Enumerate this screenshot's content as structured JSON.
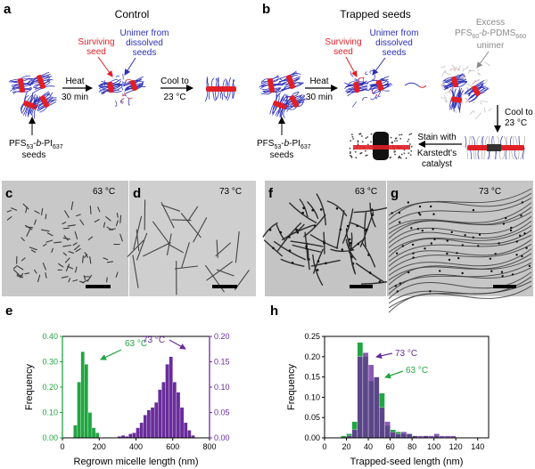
{
  "panels": {
    "a": {
      "letter": "a",
      "title": "Control",
      "surviving_seed": [
        "Surviving",
        "seed"
      ],
      "unimer": [
        "Unimer from",
        "dissolved",
        "seeds"
      ],
      "heat": "Heat",
      "heat_time": "30 min",
      "cool": "Cool to",
      "cool_temp": "23 °C",
      "seed_label": {
        "pre": "PFS",
        "sub1": "53",
        "mid": "-",
        "b": "b",
        "mid2": "-PI",
        "sub2": "637"
      },
      "seeds": "seeds"
    },
    "b": {
      "letter": "b",
      "title": "Trapped seeds",
      "surviving_seed": [
        "Surviving",
        "seed"
      ],
      "unimer": [
        "Unimer from",
        "dissolved",
        "seeds"
      ],
      "excess": {
        "line1": "Excess",
        "pre": "PFS",
        "sub1": "60",
        "mid": "-",
        "b": "b",
        "mid2": "-PDMS",
        "sub2": "660",
        "line3": "unimer"
      },
      "heat": "Heat",
      "heat_time": "30 min",
      "cool": "Cool to",
      "cool_temp": "23 °C",
      "stain": [
        "Stain with",
        "Karstedt's",
        "catalyst"
      ],
      "seed_label": {
        "pre": "PFS",
        "sub1": "53",
        "mid": "-",
        "b": "b",
        "mid2": "-PI",
        "sub2": "637"
      },
      "seeds": "seeds"
    },
    "c": {
      "letter": "c",
      "temp": "63 °C"
    },
    "d": {
      "letter": "d",
      "temp": "73 °C"
    },
    "f": {
      "letter": "f",
      "temp": "63 °C"
    },
    "g": {
      "letter": "g",
      "temp": "73 °C"
    },
    "e": {
      "letter": "e",
      "label63": "63 °C",
      "label73": "73 °C"
    },
    "h": {
      "letter": "h",
      "label73": "73 °C",
      "label63": "63 °C"
    }
  },
  "colors": {
    "green": "#22a542",
    "purple": "#6a2c9c",
    "red": "#e01f26",
    "blue": "#2b2fb8",
    "gray": "#8a8a8a",
    "tem_bg": "#c7c7c7"
  },
  "chart_data": [
    {
      "type": "bar",
      "panel": "e",
      "title": "",
      "xlabel": "Regrown micelle length (nm)",
      "ylabel": "Frequency",
      "xlim": [
        0,
        800
      ],
      "xticks": [
        0,
        200,
        400,
        600,
        800
      ],
      "ylim_left": [
        0,
        0.4
      ],
      "yticks_left": [
        "0.00",
        "0.10",
        "0.20",
        "0.30",
        "0.40"
      ],
      "ylim_right": [
        0,
        0.2
      ],
      "yticks_right": [
        "0.00",
        "0.05",
        "0.10",
        "0.15",
        "0.20"
      ],
      "bin_width": 20,
      "series": [
        {
          "label": "63 °C",
          "axis": "left",
          "color": "#22a542",
          "x": [
            60,
            80,
            100,
            120,
            140,
            160,
            180
          ],
          "values": [
            0.05,
            0.22,
            0.34,
            0.29,
            0.1,
            0.04,
            0.02
          ]
        },
        {
          "label": "73 °C",
          "axis": "right",
          "color": "#6a2c9c",
          "x": [
            300,
            320,
            340,
            360,
            380,
            400,
            420,
            440,
            460,
            480,
            500,
            520,
            540,
            560,
            580,
            600,
            620,
            640,
            660,
            680,
            700
          ],
          "values": [
            0.003,
            0.005,
            0.003,
            0.008,
            0.01,
            0.02,
            0.03,
            0.045,
            0.055,
            0.06,
            0.07,
            0.095,
            0.11,
            0.145,
            0.16,
            0.11,
            0.09,
            0.06,
            0.03,
            0.015,
            0.005
          ]
        }
      ]
    },
    {
      "type": "bar",
      "panel": "h",
      "title": "",
      "xlabel": "Trapped-seed length (nm)",
      "ylabel": "Frequency",
      "xlim": [
        0,
        150
      ],
      "xticks": [
        0,
        20,
        40,
        60,
        80,
        100,
        120,
        140
      ],
      "ylim": [
        0,
        0.25
      ],
      "yticks": [
        "0.00",
        "0.05",
        "0.10",
        "0.15",
        "0.20",
        "0.25"
      ],
      "bin_width": 5,
      "series": [
        {
          "label": "63 °C",
          "color": "#22a542",
          "x": [
            15,
            20,
            25,
            30,
            35,
            40,
            45,
            50,
            55,
            60,
            65,
            70,
            75,
            80,
            85,
            90,
            95,
            100
          ],
          "values": [
            0.005,
            0.01,
            0.04,
            0.235,
            0.2,
            0.14,
            0.15,
            0.11,
            0.03,
            0.02,
            0.015,
            0.01,
            0.01,
            0.005,
            0.0,
            0.005,
            0.0,
            0.005
          ]
        },
        {
          "label": "73 °C",
          "color": "#6a2c9c",
          "x": [
            20,
            25,
            30,
            35,
            40,
            45,
            50,
            55,
            60,
            65,
            70,
            75,
            80,
            85,
            90,
            95,
            100,
            105,
            110,
            115
          ],
          "values": [
            0.005,
            0.02,
            0.2,
            0.21,
            0.18,
            0.15,
            0.075,
            0.04,
            0.015,
            0.01,
            0.015,
            0.01,
            0.005,
            0.005,
            0.005,
            0.005,
            0.01,
            0.005,
            0.005,
            0.005
          ]
        }
      ]
    }
  ]
}
